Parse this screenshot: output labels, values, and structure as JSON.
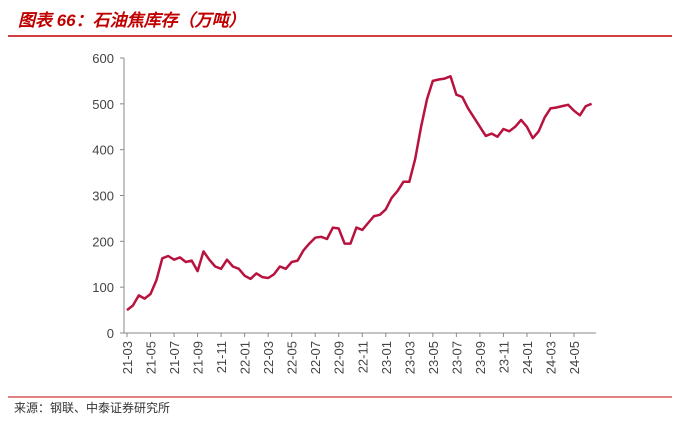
{
  "chart_data": {
    "type": "line",
    "title": "图表 66：石油焦库存（万吨）",
    "source": "来源：钢联、中泰证券研究所",
    "categories": [
      "21-03",
      null,
      null,
      null,
      "21-05",
      null,
      null,
      null,
      "21-07",
      null,
      null,
      null,
      "21-09",
      null,
      null,
      null,
      "21-11",
      null,
      null,
      null,
      "22-01",
      null,
      null,
      null,
      "22-03",
      null,
      null,
      null,
      "22-05",
      null,
      null,
      null,
      "22-07",
      null,
      null,
      null,
      "22-09",
      null,
      null,
      null,
      "22-11",
      null,
      null,
      null,
      "23-01",
      null,
      null,
      null,
      "23-03",
      null,
      null,
      null,
      "23-05",
      null,
      null,
      null,
      "23-07",
      null,
      null,
      null,
      "23-09",
      null,
      null,
      null,
      "23-11",
      null,
      null,
      null,
      "24-01",
      null,
      null,
      null,
      "24-03",
      null,
      null,
      null,
      "24-05",
      null,
      null,
      null
    ],
    "series": [
      {
        "color": "#b8123f",
        "values": [
          50,
          60,
          82,
          75,
          85,
          115,
          163,
          168,
          160,
          165,
          155,
          158,
          135,
          178,
          160,
          145,
          140,
          160,
          145,
          140,
          125,
          118,
          130,
          122,
          120,
          128,
          145,
          140,
          155,
          158,
          180,
          195,
          208,
          210,
          205,
          230,
          228,
          195,
          195,
          230,
          225,
          240,
          255,
          258,
          270,
          295,
          310,
          330,
          330,
          380,
          450,
          510,
          550,
          553,
          555,
          560,
          520,
          515,
          490,
          470,
          450,
          430,
          435,
          428,
          445,
          440,
          450,
          465,
          450,
          425,
          440,
          470,
          490,
          492,
          495,
          498,
          485,
          475,
          495,
          500
        ]
      }
    ],
    "ylim": [
      0,
      600
    ],
    "yticks": [
      0,
      100,
      200,
      300,
      400,
      500,
      600
    ]
  }
}
